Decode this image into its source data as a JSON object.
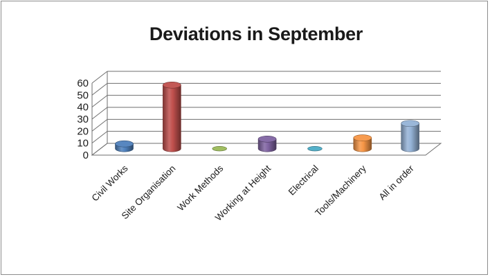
{
  "chart_data": {
    "type": "bar",
    "title": "Deviations in September",
    "categories": [
      "Civil Works",
      "Site Organisation",
      "Work Methods",
      "Working at Height",
      "Electrical",
      "Tools/Machinery",
      "All in order"
    ],
    "values": [
      4,
      53,
      0,
      8,
      0,
      9,
      21
    ],
    "ylim": [
      0,
      60
    ],
    "yticks": [
      0,
      10,
      20,
      30,
      40,
      50,
      60
    ],
    "grid": true,
    "legend": "none",
    "style": "3d-cylinder",
    "colors": [
      "#4f81bd",
      "#c0504d",
      "#9bbb59",
      "#8064a2",
      "#4bacc6",
      "#f79646",
      "#95b3d7"
    ]
  }
}
